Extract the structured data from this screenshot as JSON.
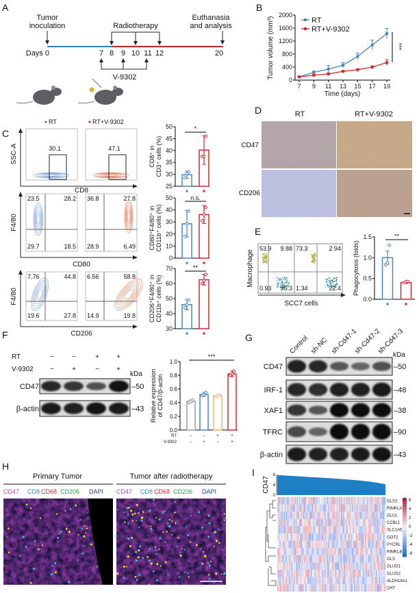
{
  "panels": {
    "A": "A",
    "B": "B",
    "C": "C",
    "D": "D",
    "E": "E",
    "F": "F",
    "G": "G",
    "H": "H",
    "I": "I"
  },
  "timeline": {
    "inoculation": [
      "Tumor",
      "inoculation"
    ],
    "radiotherapy": "Radiotherapy",
    "euthanasia": [
      "Euthanasia",
      "and analysis"
    ],
    "days_label": "Days 0",
    "days": [
      "7",
      "8",
      "9",
      "10",
      "11",
      "12",
      "20"
    ],
    "drug": "V-9302",
    "segment_colors": {
      "before": "#2f7fc1",
      "after": "#c9262c"
    }
  },
  "colors": {
    "rt": "#4a86c5",
    "rt_v9302": "#d6262b",
    "control": "#9a9a9a",
    "rt_only": "#f0b27a"
  },
  "flow_c": {
    "legend": [
      "RT",
      "RT+V-9302"
    ],
    "row1": {
      "y_axis": "SSC-A",
      "x_axis": "CD8",
      "gates": [
        "30.1",
        "47.1"
      ]
    },
    "row2": {
      "y_axis": "F4/80",
      "x_axis": "CD80",
      "rt": [
        "23.5",
        "28.2",
        "29.7",
        "18.5"
      ],
      "rt_v": [
        "36.8",
        "27.8",
        "28.9",
        "6.49"
      ]
    },
    "row3": {
      "y_axis": "F4/80",
      "x_axis": "CD206",
      "rt": [
        "7.76",
        "44.8",
        "19.6",
        "27.8"
      ],
      "rt_v": [
        "6.56",
        "58.8",
        "14.9",
        "19.8"
      ]
    }
  },
  "ihc_d": {
    "columns": [
      "RT",
      "RT+V-9302"
    ],
    "rows": [
      "CD47",
      "CD206"
    ]
  },
  "flow_e": {
    "y_axis": "Macrophage",
    "x_axis": "SCC7 cells",
    "rt": [
      "53.9",
      "9.88",
      "0.93",
      "35.3"
    ],
    "rt_v": [
      "73.3",
      "2.94",
      "1.34",
      "22.4"
    ]
  },
  "blot_f": {
    "conditions": [
      {
        "label": "RT",
        "signs": [
          "−",
          "−",
          "+",
          "+"
        ]
      },
      {
        "label": "V-9302",
        "signs": [
          "−",
          "+",
          "−",
          "+"
        ]
      }
    ],
    "kda_label": "kDa",
    "rows": [
      {
        "label": "CD47",
        "kda": "50",
        "intensity": [
          0.8,
          0.7,
          0.5,
          0.95
        ]
      },
      {
        "label": "β-actin",
        "kda": "43",
        "intensity": [
          0.9,
          0.85,
          0.95,
          0.9
        ]
      }
    ]
  },
  "blot_g": {
    "lanes": [
      "Control",
      "sh-NC",
      "sh-Cd47-1",
      "sh-Cd47-2",
      "sh-Cd47-3"
    ],
    "kda_label": "kDa",
    "rows": [
      {
        "label": "CD47",
        "kda": "50",
        "intensity": [
          0.85,
          0.8,
          0.45,
          0.35,
          0.5
        ]
      },
      {
        "label": "IRF-1",
        "kda": "48",
        "intensity": [
          0.8,
          0.75,
          0.85,
          0.85,
          0.9
        ]
      },
      {
        "label": "XAF1",
        "kda": "38",
        "intensity": [
          0.7,
          0.45,
          1,
          1,
          1
        ]
      },
      {
        "label": "TFRC",
        "kda": "90",
        "intensity": [
          0.55,
          0.35,
          1,
          1,
          1
        ]
      },
      {
        "label": "β-actin",
        "kda": "43",
        "intensity": [
          0.9,
          0.85,
          0.85,
          0.9,
          0.95
        ]
      }
    ]
  },
  "if_h": {
    "titles": [
      "Primary Tumor",
      "Tumor after radiotherapy"
    ],
    "channels": [
      {
        "name": "CD47",
        "color": "#b04fa0"
      },
      {
        "name": "CD8",
        "color": "#2d8fc4"
      },
      {
        "name": "CD68",
        "color": "#e0262b"
      },
      {
        "name": "CD206",
        "color": "#2a9d48"
      },
      {
        "name": "DAPI",
        "color": "#2a3c99"
      }
    ]
  },
  "chart_data": [
    {
      "id": "tumor-volume",
      "type": "line",
      "xlabel": "Time (days)",
      "ylabel": "Tumor volume (mm³)",
      "x": [
        7,
        9,
        11,
        13,
        15,
        17,
        19
      ],
      "xticks": [
        "7",
        "9",
        "11",
        "13",
        "15",
        "17",
        "19"
      ],
      "ylim": [
        0,
        2000
      ],
      "yticks": [
        "0",
        "400",
        "800",
        "1200",
        "1600",
        "2000"
      ],
      "legend_position": "top-left",
      "significance": "***",
      "series": [
        {
          "name": "RT",
          "color": "#4a86c5",
          "values": [
            100,
            240,
            340,
            460,
            730,
            1080,
            1430
          ],
          "err": [
            20,
            40,
            110,
            80,
            100,
            150,
            160
          ]
        },
        {
          "name": "RT+V-9302",
          "color": "#d6262b",
          "values": [
            100,
            150,
            190,
            270,
            320,
            400,
            540
          ],
          "err": [
            15,
            25,
            30,
            25,
            30,
            40,
            90
          ]
        }
      ]
    },
    {
      "id": "cd8",
      "type": "bar",
      "ylabel": [
        "CD8⁺ in",
        "CD3⁺ cells (%)"
      ],
      "ylim": [
        25,
        50
      ],
      "yticks": [
        "25",
        "30",
        "35",
        "40",
        "45",
        "50"
      ],
      "significance": "*",
      "groups": [
        {
          "name": "RT",
          "color": "#4a86c5",
          "mean": 29.8,
          "err": 1.5,
          "points": [
            28.5,
            30.2,
            31
          ]
        },
        {
          "name": "RT+V-9302",
          "color": "#d6262b",
          "mean": 40.2,
          "err": 6,
          "points": [
            37.5,
            37.5,
            46
          ]
        }
      ]
    },
    {
      "id": "cd80",
      "type": "bar",
      "ylabel": [
        "CD80⁺F4/80⁺ in",
        "CD11b⁺ cells (%)"
      ],
      "ylim": [
        0,
        50
      ],
      "yticks": [
        "0",
        "10",
        "20",
        "30",
        "40",
        "50"
      ],
      "significance": "n.s.",
      "groups": [
        {
          "name": "RT",
          "color": "#4a86c5",
          "mean": 28.5,
          "err": 11,
          "points": [
            18,
            28.5,
            39
          ]
        },
        {
          "name": "RT+V-9302",
          "color": "#d6262b",
          "mean": 36.2,
          "err": 7.5,
          "points": [
            31,
            36,
            42
          ]
        }
      ]
    },
    {
      "id": "cd206",
      "type": "bar",
      "ylabel": [
        "CD206⁺F4/80⁺ in",
        "CD11b⁺ cells (%)"
      ],
      "ylim": [
        30,
        70
      ],
      "yticks": [
        "30",
        "40",
        "50",
        "60",
        "70"
      ],
      "significance": "**",
      "groups": [
        {
          "name": "RT",
          "color": "#4a86c5",
          "mean": 46,
          "err": 3.5,
          "points": [
            44,
            46,
            49
          ]
        },
        {
          "name": "RT+V-9302",
          "color": "#d6262b",
          "mean": 62.5,
          "err": 3.5,
          "points": [
            60,
            62,
            66
          ]
        }
      ]
    },
    {
      "id": "phagocytosis",
      "type": "bar",
      "ylabel": [
        "Phagocytosis (folds)"
      ],
      "ylim": [
        0,
        1.5
      ],
      "yticks": [
        "0.0",
        "0.5",
        "1.0",
        "1.5"
      ],
      "significance": "**",
      "groups": [
        {
          "name": "RT",
          "color": "#4a86c5",
          "mean": 1.0,
          "err": 0.16,
          "points": [
            0.83,
            0.87,
            1.3
          ]
        },
        {
          "name": "RT+V-9302",
          "color": "#d6262b",
          "mean": 0.4,
          "err": 0.02,
          "points": [
            0.4,
            0.42,
            0.43
          ]
        }
      ]
    },
    {
      "id": "cd47-expression",
      "type": "bar",
      "ylabel": [
        "Relative expression",
        "of CD47/β-actin"
      ],
      "ylim": [
        0,
        1.0
      ],
      "yticks": [
        "0.0",
        "0.2",
        "0.4",
        "0.6",
        "0.8",
        "1.0"
      ],
      "significance": "***",
      "xrows": [
        {
          "label": "RT",
          "signs": [
            "−",
            "−",
            "+",
            "+"
          ]
        },
        {
          "label": "V-9302",
          "signs": [
            "−",
            "+",
            "−",
            "+"
          ]
        }
      ],
      "groups": [
        {
          "name": "Control",
          "color": "#9a9a9a",
          "mean": 0.42,
          "err": 0.02,
          "points": [
            0.4,
            0.42,
            0.44
          ]
        },
        {
          "name": "V-9302",
          "color": "#4a86c5",
          "mean": 0.52,
          "err": 0.03,
          "points": [
            0.5,
            0.52,
            0.55
          ]
        },
        {
          "name": "RT",
          "color": "#f0b27a",
          "mean": 0.5,
          "err": 0.01,
          "points": [
            0.49,
            0.5,
            0.51
          ]
        },
        {
          "name": "RT+V-9302",
          "color": "#d6262b",
          "mean": 0.82,
          "err": 0.04,
          "points": [
            0.8,
            0.82,
            0.86
          ]
        }
      ]
    },
    {
      "id": "cd47-glutamine-heatmap",
      "type": "heatmap",
      "top_track_label": "CD47",
      "top_track_ylim": [
        0,
        8
      ],
      "top_track_ticks": [
        "0",
        "4",
        "8"
      ],
      "top_track_range": [
        7.8,
        4.2
      ],
      "rows": [
        "GLS2",
        "RIMKLA",
        "GLUL",
        "CCBL1",
        "SLC1A5",
        "GOT2",
        "PYCRL",
        "RIMKLB",
        "GLS",
        "GLUD1",
        "GLUD2",
        "ALDH18A1",
        "OAT"
      ],
      "colorbar_ticks": [
        "6",
        "4",
        "2",
        "0",
        "-2",
        "-4",
        "-6"
      ],
      "colorbar_range": [
        -6,
        6
      ]
    }
  ]
}
